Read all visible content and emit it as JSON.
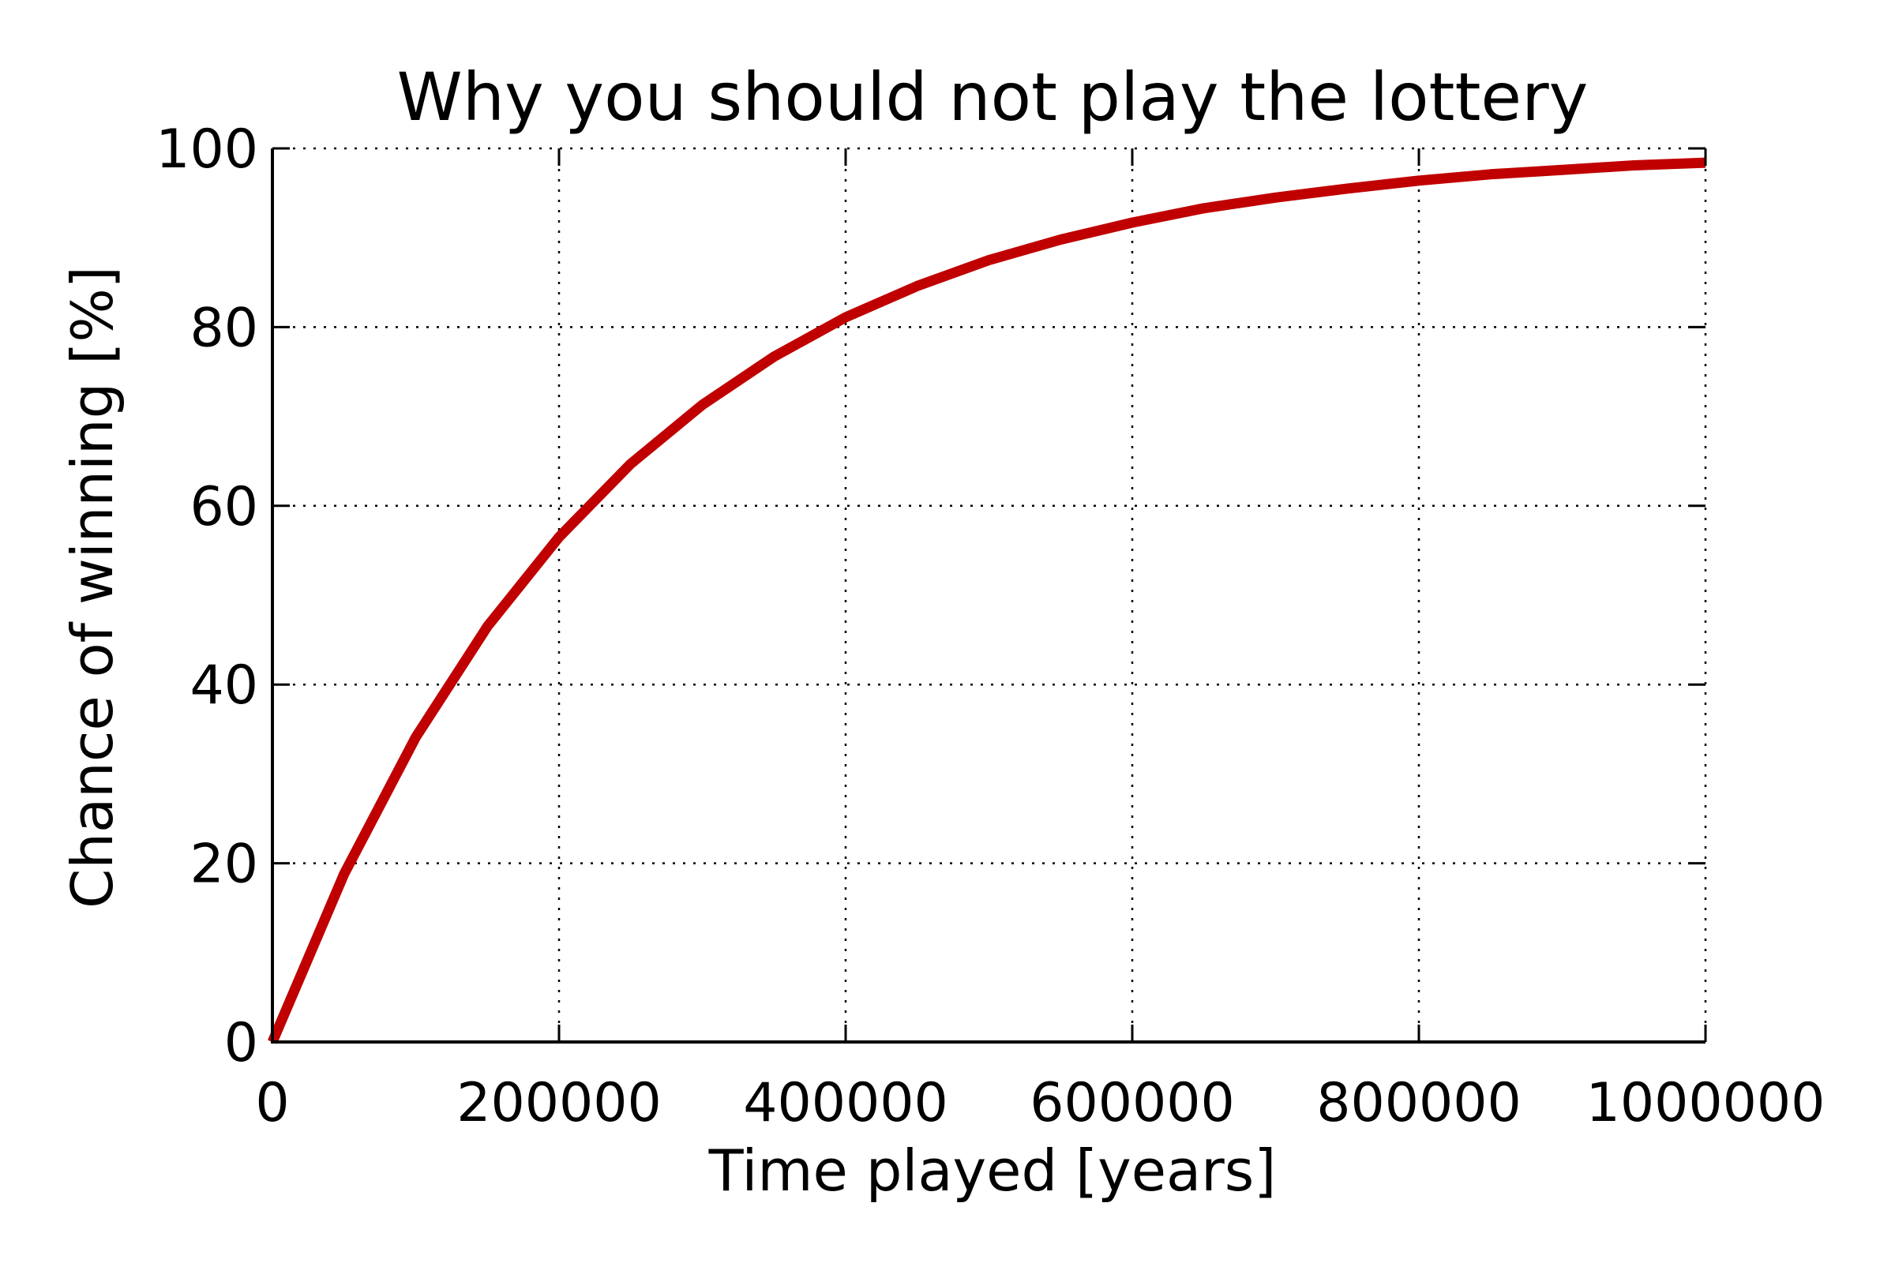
{
  "chart_data": {
    "type": "line",
    "title": "Why you should not play the lottery",
    "xlabel": "Time played [years]",
    "ylabel": "Chance of winning [%]",
    "xlim": [
      0,
      1000000
    ],
    "ylim": [
      0,
      100
    ],
    "xticks": [
      0,
      200000,
      400000,
      600000,
      800000,
      1000000
    ],
    "xtick_labels": [
      "0",
      "200000",
      "400000",
      "600000",
      "800000",
      "1000000"
    ],
    "yticks": [
      0,
      20,
      40,
      60,
      80,
      100
    ],
    "ytick_labels": [
      "0",
      "20",
      "40",
      "60",
      "80",
      "100"
    ],
    "grid": true,
    "grid_style": "dotted",
    "line_color": "#c00000",
    "series": [
      {
        "x": [
          0,
          50000,
          100000,
          150000,
          200000,
          250000,
          300000,
          350000,
          400000,
          450000,
          500000,
          550000,
          600000,
          650000,
          700000,
          750000,
          800000,
          850000,
          900000,
          950000,
          1000000
        ],
        "values": [
          0,
          18.8,
          34.1,
          46.5,
          56.5,
          64.7,
          71.3,
          76.7,
          81.1,
          84.6,
          87.5,
          89.8,
          91.7,
          93.3,
          94.5,
          95.5,
          96.4,
          97.1,
          97.6,
          98.1,
          98.4
        ]
      }
    ]
  }
}
